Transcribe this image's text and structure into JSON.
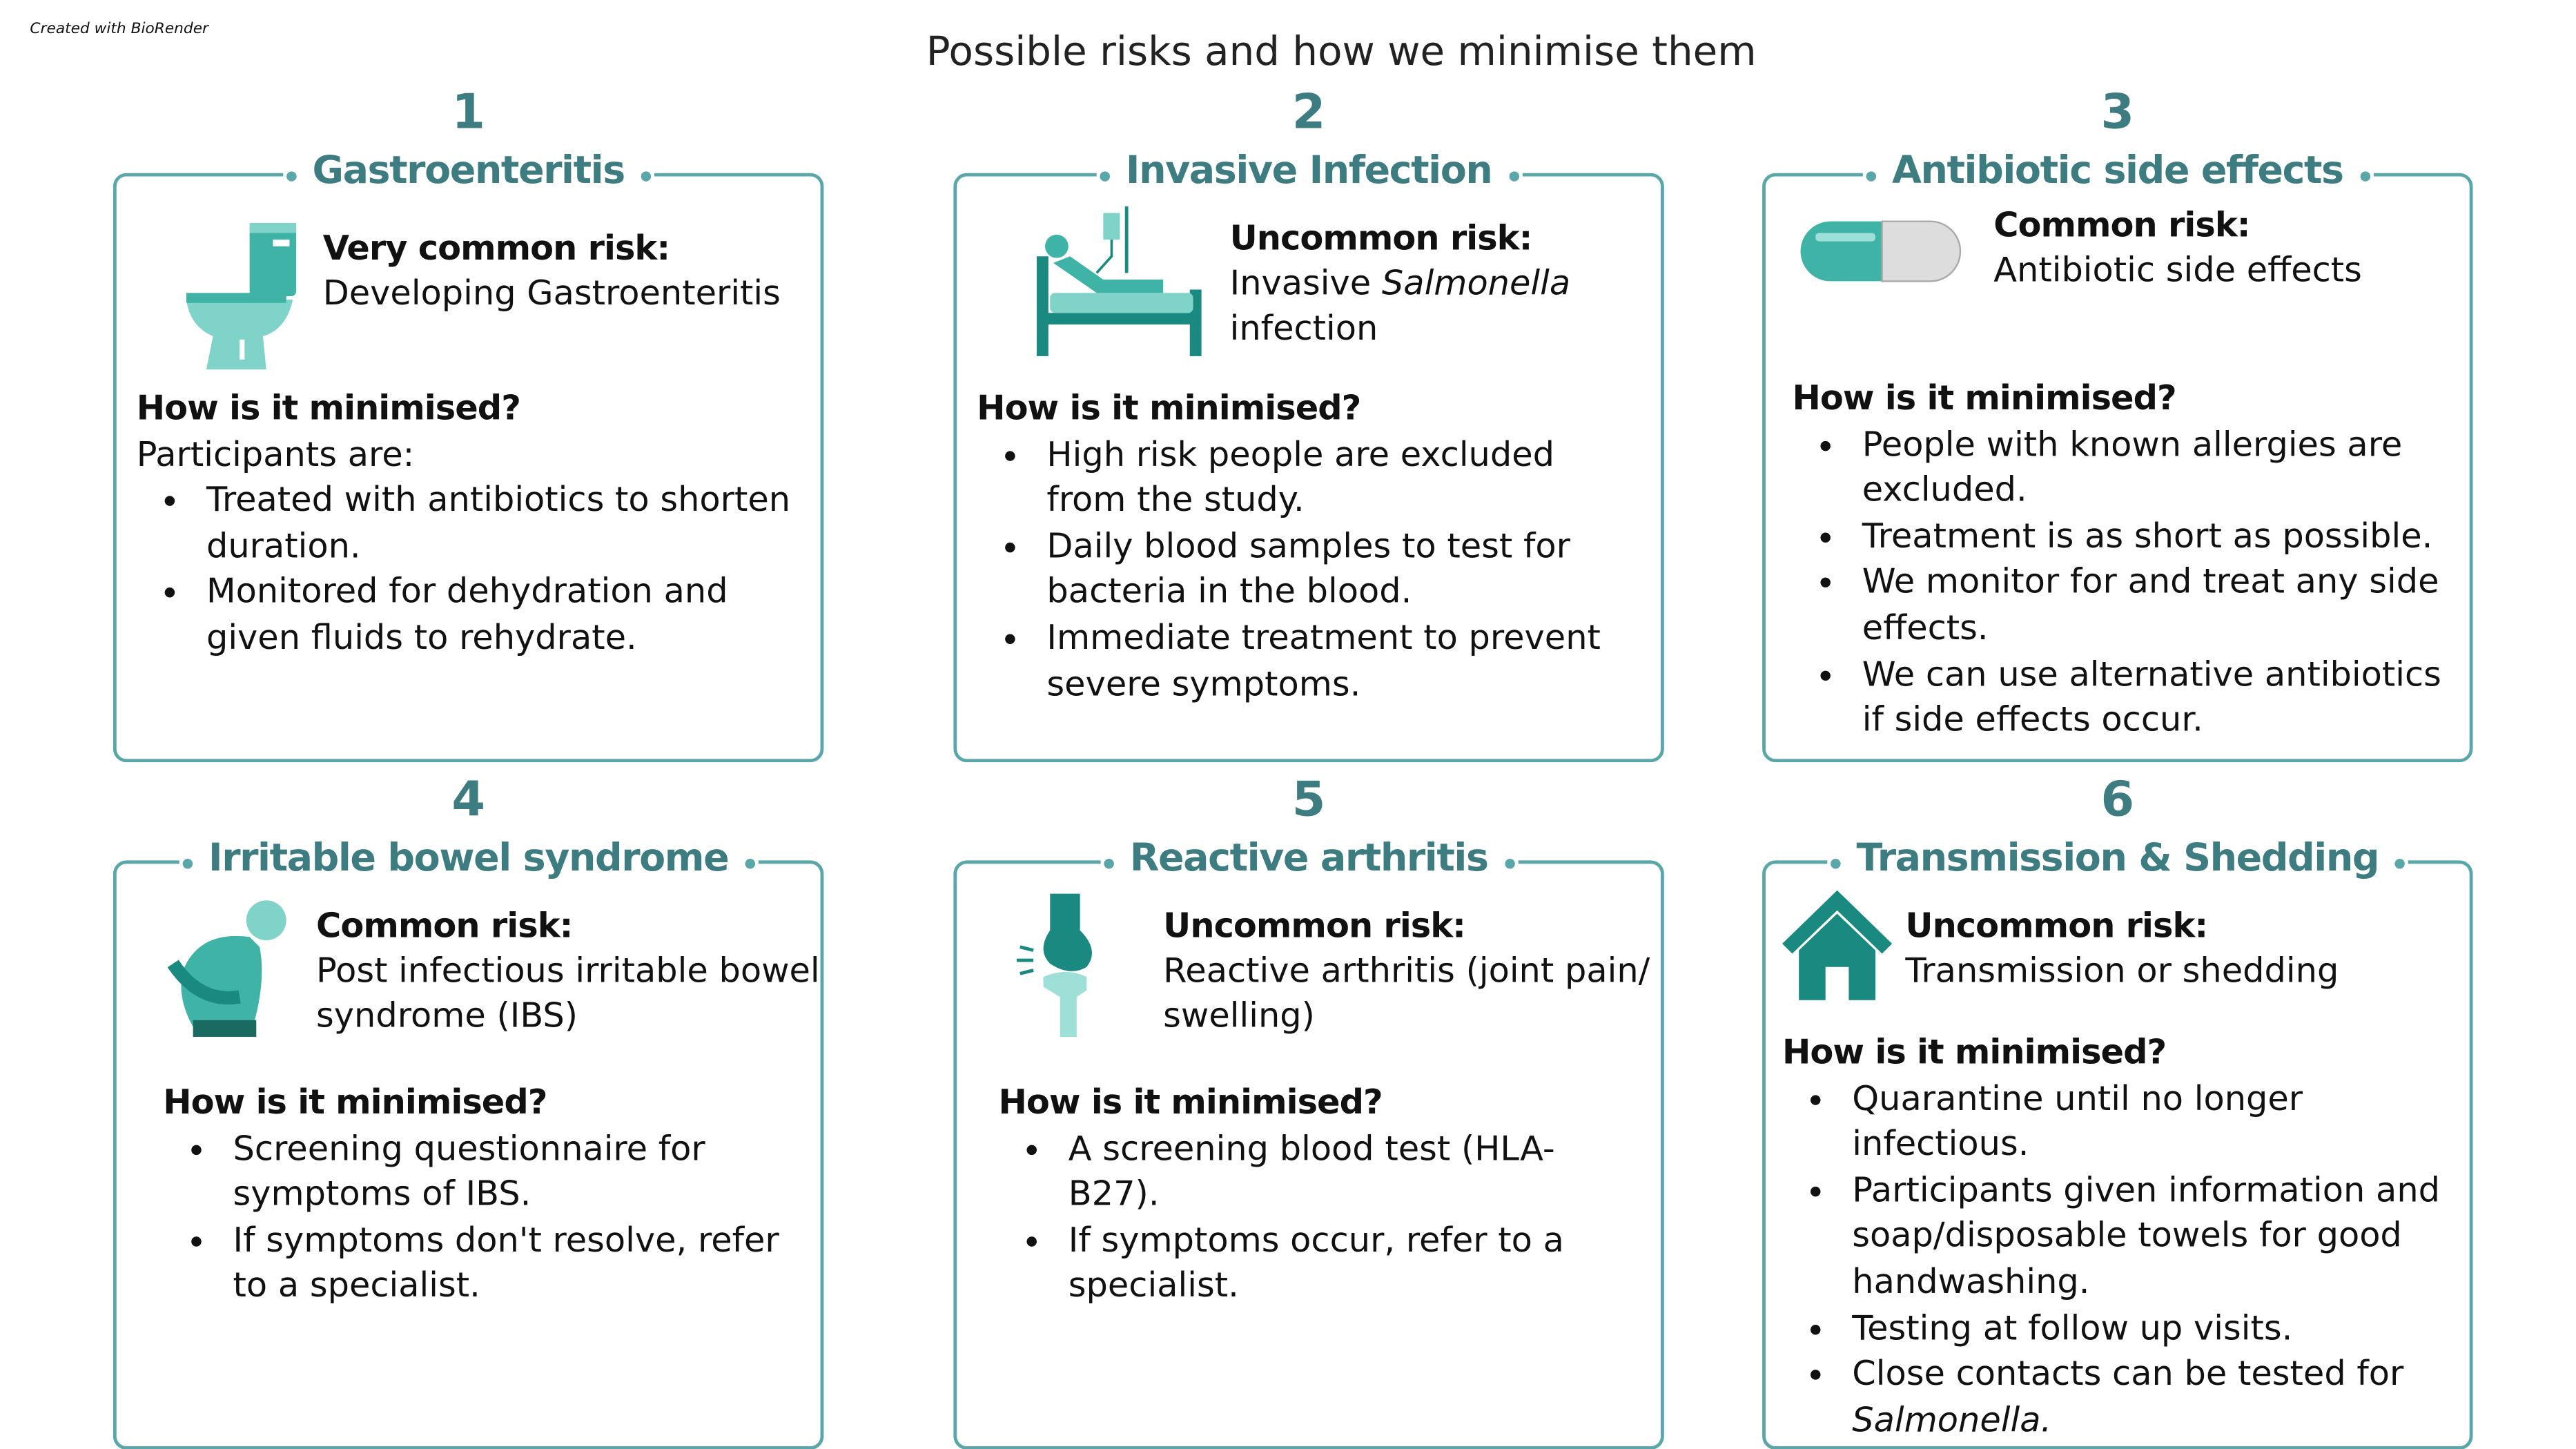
{
  "credit": "Created with BioRender",
  "title": "Possible risks and how we minimise them",
  "cards": [
    {
      "number": "1",
      "heading": "Gastroenteritis",
      "risk_label": "Very common risk:",
      "risk_text": [
        "Developing Gastroenteritis"
      ],
      "minimise_heading": "How is it minimised?",
      "intro": "Participants are:",
      "bullets": [
        "Treated with antibiotics to shorten duration.",
        "Monitored for dehydration and given fluids to rehydrate."
      ]
    },
    {
      "number": "2",
      "heading": "Invasive Infection",
      "risk_label": "Uncommon risk:",
      "risk_text": [
        "Invasive ",
        {
          "text": "Salmonella",
          "italic": true
        },
        " infection"
      ],
      "minimise_heading": "How is it minimised?",
      "bullets": [
        "High risk people are excluded from the study.",
        "Daily blood samples to test for bacteria in the blood.",
        "Immediate treatment to prevent severe symptoms."
      ]
    },
    {
      "number": "3",
      "heading": "Antibiotic side effects",
      "risk_label": "Common risk:",
      "risk_text": [
        "Antibiotic side effects"
      ],
      "minimise_heading": "How is it minimised?",
      "bullets": [
        "People with known allergies are excluded.",
        "Treatment is as short as possible.",
        "We monitor for and treat any side effects.",
        "We can use alternative antibiotics if side effects occur."
      ]
    },
    {
      "number": "4",
      "heading": "Irritable bowel syndrome",
      "risk_label": "Common risk:",
      "risk_text": [
        "Post infectious irritable bowel syndrome (IBS)"
      ],
      "minimise_heading": "How is it minimised?",
      "bullets": [
        "Screening questionnaire for symptoms of IBS.",
        "If symptoms don't resolve, refer to a specialist."
      ]
    },
    {
      "number": "5",
      "heading": "Reactive arthritis",
      "risk_label": "Uncommon risk:",
      "risk_text": [
        "Reactive arthritis (joint pain/ swelling)"
      ],
      "minimise_heading": "How is it minimised?",
      "bullets": [
        "A screening blood test (HLA-B27).",
        "If symptoms occur, refer to a specialist."
      ]
    },
    {
      "number": "6",
      "heading": "Transmission & Shedding",
      "risk_label": "Uncommon risk:",
      "risk_text": [
        "Transmission or shedding"
      ],
      "minimise_heading": "How is it minimised?",
      "bullets": [
        "Quarantine until no longer infectious.",
        "Participants given information and soap/disposable towels for good handwashing.",
        "Testing at follow up visits.",
        [
          "Close contacts can be tested for ",
          {
            "text": "Salmonella.",
            "italic": true
          }
        ]
      ]
    }
  ]
}
